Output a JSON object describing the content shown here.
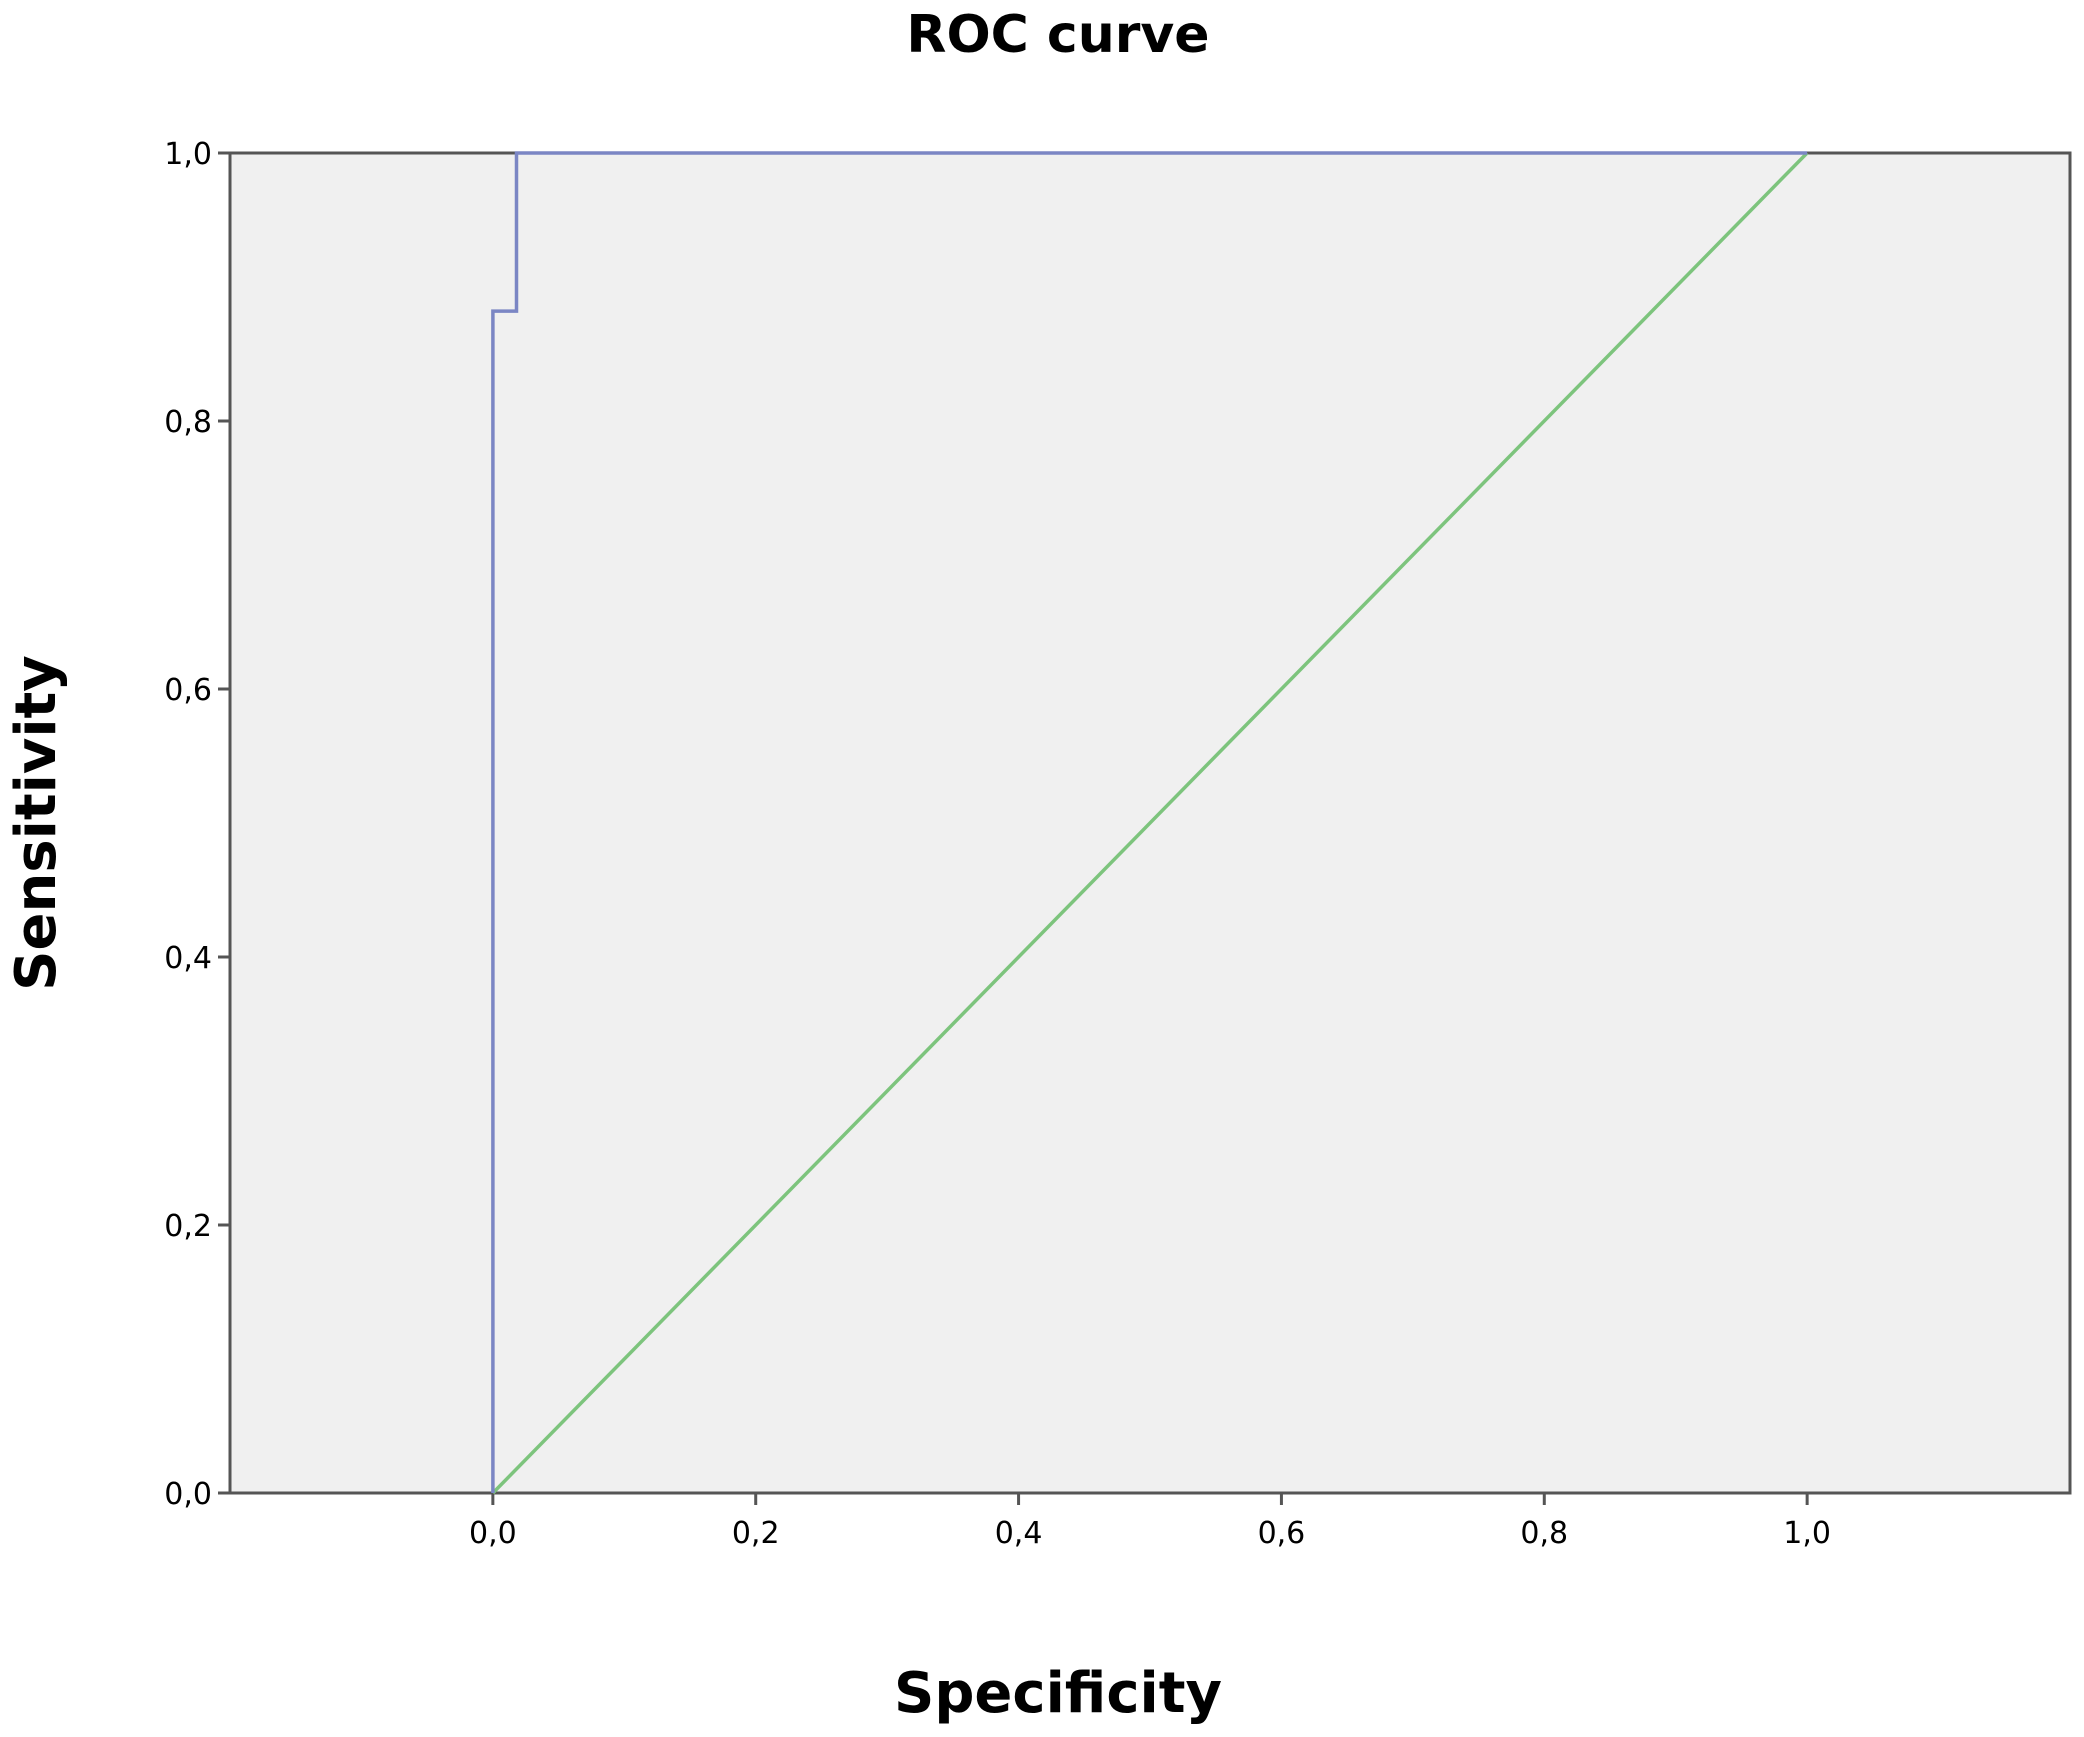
{
  "chart_data": {
    "type": "line",
    "title": "ROC curve",
    "xlabel": "Specificity",
    "ylabel": "Sensitivity",
    "xlim": [
      -0.2,
      1.2
    ],
    "ylim": [
      0.0,
      1.0
    ],
    "x_ticks": [
      0.0,
      0.2,
      0.4,
      0.6,
      0.8,
      1.0
    ],
    "y_ticks": [
      0.0,
      0.2,
      0.4,
      0.6,
      0.8,
      1.0
    ],
    "x_tick_labels": [
      "0,0",
      "0,2",
      "0,4",
      "0,6",
      "0,8",
      "1,0"
    ],
    "y_tick_labels": [
      "0,0",
      "0,2",
      "0,4",
      "0,6",
      "0,8",
      "1,0"
    ],
    "grid": false,
    "legend": "none",
    "plot_background": "#f0f0f0",
    "series": [
      {
        "color": "#7b86c4",
        "style": "step",
        "x": [
          0.0,
          0.0,
          0.018,
          0.018,
          1.0
        ],
        "y": [
          0.0,
          0.882,
          0.882,
          1.0,
          1.0
        ]
      },
      {
        "color": "#7dc47d",
        "style": "line",
        "x": [
          0.0,
          1.0
        ],
        "y": [
          0.0,
          1.0
        ]
      }
    ]
  }
}
